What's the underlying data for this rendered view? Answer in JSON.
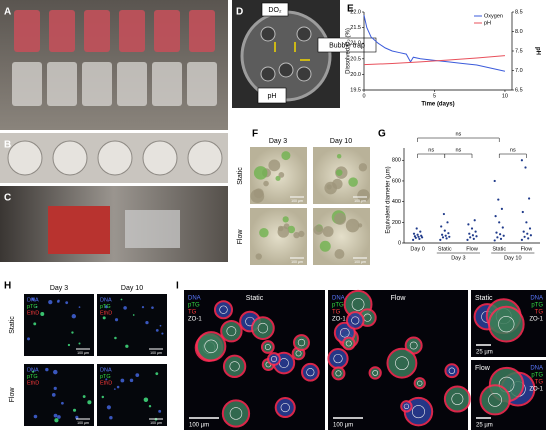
{
  "panel_labels": [
    "A",
    "B",
    "C",
    "D",
    "E",
    "F",
    "G",
    "H",
    "I"
  ],
  "D": {
    "do2": "DO₂",
    "bubble_trap": "Bubble trap",
    "ph": "pH"
  },
  "F": {
    "columns": [
      "Day 3",
      "Day 10"
    ],
    "rows": [
      "Static",
      "Flow"
    ],
    "scale_bars": [
      "100 µm",
      "100 µm",
      "100 µm",
      "100 µm"
    ]
  },
  "H": {
    "columns": [
      "Day 3",
      "Day 10"
    ],
    "rows": [
      "Static",
      "Flow"
    ],
    "stains": [
      [
        "DNA",
        "pTG",
        "EthD"
      ],
      [
        "DNA",
        "pTG",
        "EthD"
      ],
      [
        "DNA",
        "pTG",
        "EthD"
      ],
      [
        "DNA",
        "pTG",
        "EthD"
      ]
    ],
    "scale_bars": [
      "100 µm",
      "100 µm",
      "100 µm",
      "100 µm"
    ]
  },
  "I": {
    "titles": [
      "Static",
      "Flow",
      "Static",
      "Flow"
    ],
    "stains": [
      [
        "DNA",
        "pTG",
        "TG",
        "ZO-1"
      ],
      [
        "DNA",
        "pTG",
        "TG",
        "ZO-1"
      ],
      [
        "DNA",
        "pTG",
        "TG",
        "ZO-1"
      ],
      [
        "DNA",
        "pTG",
        "TG",
        "ZO-1"
      ]
    ],
    "scale_bars": [
      "100 µm",
      "100 µm",
      "25 µm",
      "25 µm"
    ]
  },
  "chart_data": [
    {
      "type": "line",
      "x_label": "Time (days)",
      "y_label": "Dissolved O₂ (%)",
      "y2_label": "pH",
      "xlim": [
        0,
        10.5
      ],
      "xticks": [
        0,
        5,
        10
      ],
      "ylim": [
        19.5,
        22
      ],
      "yticks": [
        19.5,
        {
          "value": 20,
          "label": "20.0"
        },
        20.5,
        {
          "value": 21,
          "label": "21.0"
        },
        21.5,
        {
          "value": 22,
          "label": "22.0"
        }
      ],
      "y2lim": [
        6.5,
        8.5
      ],
      "y2ticks": [
        6.5,
        {
          "value": 7,
          "label": "7.0"
        },
        7.5,
        {
          "value": 8,
          "label": "8.0"
        },
        8.5
      ],
      "legend": "top-right",
      "series": [
        {
          "name": "Oxygen",
          "color": "#3b5bdb",
          "x": [
            0,
            0.2,
            0.5,
            1,
            1.5,
            2,
            2.5,
            3,
            3.3,
            3.5,
            4,
            5,
            6,
            7,
            8,
            9,
            10
          ],
          "values": [
            21.9,
            21.5,
            21.2,
            21.0,
            20.85,
            20.75,
            20.7,
            20.65,
            20.4,
            20.55,
            20.5,
            20.45,
            20.4,
            20.35,
            20.3,
            20.2,
            20.1
          ]
        },
        {
          "name": "pH",
          "color": "#e8505b",
          "axis": "y2",
          "x": [
            0,
            2,
            4,
            6,
            8,
            10
          ],
          "values": [
            7.15,
            7.18,
            7.22,
            7.27,
            7.32,
            7.38
          ]
        }
      ]
    },
    {
      "type": "strip",
      "y_label": "Equivalent diameter (µm)",
      "categories": [
        "Day 0",
        "Static",
        "Flow",
        "Static",
        "Flow"
      ],
      "group_labels": [
        "Day 3",
        "Day 10"
      ],
      "ylim": [
        0,
        880
      ],
      "yticks": [
        0,
        200,
        400,
        600,
        800
      ],
      "color": "#1f3a8a",
      "points": [
        [
          30,
          40,
          50,
          55,
          60,
          65,
          70,
          80,
          90,
          110,
          140
        ],
        [
          30,
          45,
          55,
          60,
          70,
          80,
          95,
          120,
          160,
          200,
          280
        ],
        [
          30,
          40,
          55,
          65,
          75,
          90,
          110,
          140,
          180,
          220
        ],
        [
          25,
          40,
          55,
          70,
          85,
          100,
          150,
          200,
          260,
          330,
          420,
          600
        ],
        [
          30,
          45,
          60,
          75,
          90,
          110,
          140,
          200,
          300,
          430,
          730,
          800
        ]
      ],
      "significance": [
        "ns",
        "ns",
        "ns",
        "ns"
      ]
    }
  ]
}
